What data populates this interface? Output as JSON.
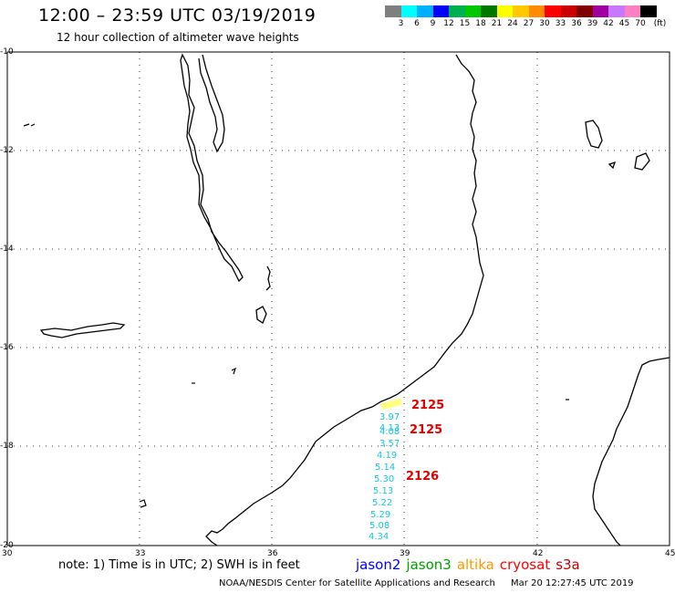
{
  "title": "12:00 – 23:59 UTC 03/19/2019",
  "subtitle": "12 hour collection of altimeter wave heights",
  "legend": {
    "colors": [
      "#7f7f7f",
      "#00ffff",
      "#00b0ff",
      "#0000ff",
      "#00b050",
      "#00c800",
      "#007800",
      "#ffff00",
      "#ffc800",
      "#ff8c00",
      "#ff0000",
      "#c80000",
      "#800000",
      "#a000a0",
      "#c878ff",
      "#ff80c0",
      "#000000"
    ],
    "labels": [
      "3",
      "6",
      "9",
      "12",
      "15",
      "18",
      "21",
      "24",
      "27",
      "30",
      "33",
      "36",
      "39",
      "42",
      "45",
      "70",
      "(ft)"
    ]
  },
  "lat_labels": [
    "-10",
    "-12",
    "-14",
    "-16",
    "-18",
    "-20"
  ],
  "lon_labels": [
    "30",
    "33",
    "36",
    "39",
    "42",
    "45"
  ],
  "swh_values": [
    "3.97",
    "4.13",
    "4.08",
    "3.57",
    "4.19",
    "5.14",
    "5.30",
    "5.13",
    "5.22",
    "5.29",
    "5.08",
    "4.34"
  ],
  "pass_labels": [
    "2125",
    "2125",
    "2126"
  ],
  "footer": {
    "note": "note:  1) Time is in UTC;  2) SWH is in feet",
    "credit": "NOAA/NESDIS Center for Satellite Applications and Research",
    "timestamp": "Mar 20 12:27:45 UTC 2019"
  },
  "satellites": [
    {
      "name": "jason2",
      "color": "#0000ff"
    },
    {
      "name": "jason3",
      "color": "#00a000"
    },
    {
      "name": "altika",
      "color": "#ff9900"
    },
    {
      "name": "cryosat",
      "color": "#ff0000"
    },
    {
      "name": "s3a",
      "color": "#c00000"
    }
  ]
}
